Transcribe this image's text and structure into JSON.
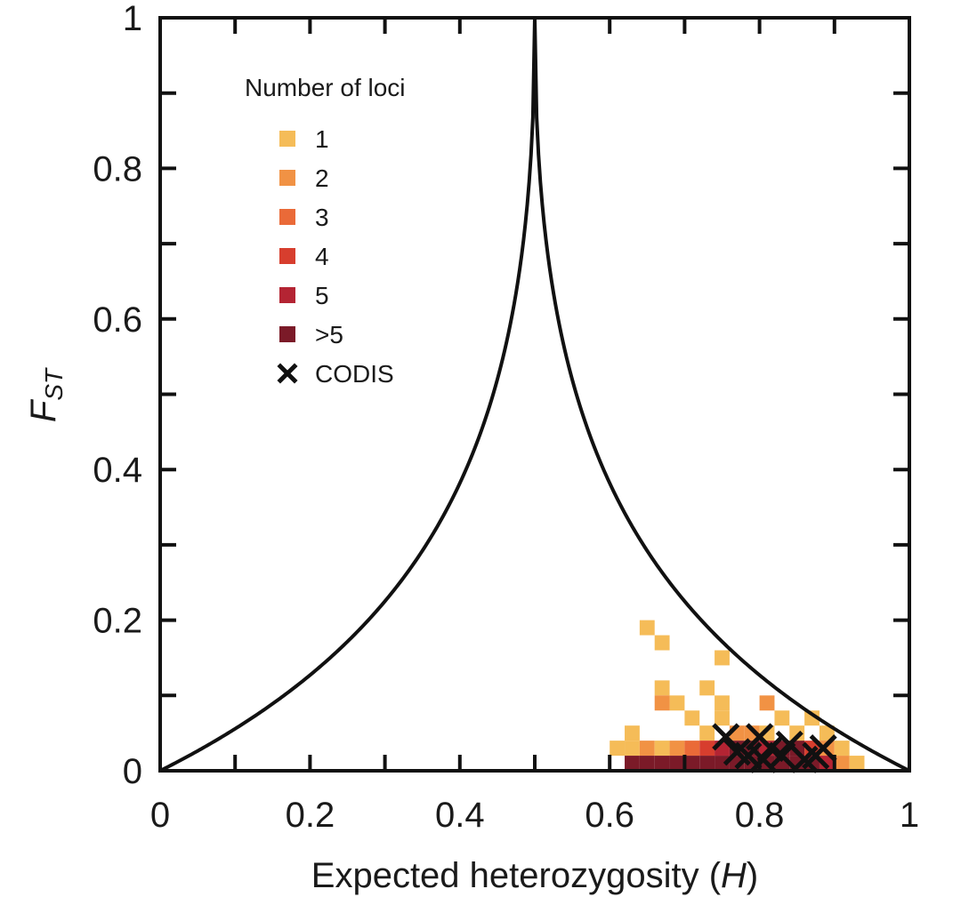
{
  "chart_data": {
    "type": "heatmap",
    "xlabel": "Expected heterozygosity",
    "xlabel_var": "H",
    "ylabel_main": "F",
    "ylabel_sub": "ST",
    "xlim": [
      0,
      1
    ],
    "ylim": [
      0,
      1
    ],
    "x_ticks": [
      "0",
      "0.2",
      "0.4",
      "0.6",
      "0.8",
      "1"
    ],
    "x_tick_values": [
      0,
      0.2,
      0.4,
      0.6,
      0.8,
      1
    ],
    "y_ticks": [
      "0",
      "0.2",
      "0.4",
      "0.6",
      "0.8",
      "1"
    ],
    "y_tick_values": [
      0,
      0.2,
      0.4,
      0.6,
      0.8,
      1
    ],
    "minor_tick_step": 0.1,
    "bin_width": 0.02,
    "bin_height": 0.02,
    "legend_title": "Number of loci",
    "legend_placement": "top-left",
    "legend_items": [
      {
        "label": "1",
        "color": "#f5bc58"
      },
      {
        "label": "2",
        "color": "#f19244"
      },
      {
        "label": "3",
        "color": "#ea6a38"
      },
      {
        "label": "4",
        "color": "#d73e2e"
      },
      {
        "label": "5",
        "color": "#b42433"
      },
      {
        "label": ">5",
        "color": "#7b1a28"
      }
    ],
    "codis_label": "CODIS",
    "colors": {
      "1": "#f5bc58",
      "2": "#f19244",
      "3": "#ea6a38",
      "4": "#d73e2e",
      "5": "#b42433",
      ">5": "#7b1a28"
    },
    "bins": [
      {
        "x": 0.65,
        "y": 0.19,
        "count": "1"
      },
      {
        "x": 0.67,
        "y": 0.17,
        "count": "1"
      },
      {
        "x": 0.75,
        "y": 0.15,
        "count": "1"
      },
      {
        "x": 0.67,
        "y": 0.11,
        "count": "1"
      },
      {
        "x": 0.73,
        "y": 0.11,
        "count": "1"
      },
      {
        "x": 0.67,
        "y": 0.09,
        "count": "2"
      },
      {
        "x": 0.69,
        "y": 0.09,
        "count": "1"
      },
      {
        "x": 0.75,
        "y": 0.09,
        "count": "1"
      },
      {
        "x": 0.81,
        "y": 0.09,
        "count": "2"
      },
      {
        "x": 0.71,
        "y": 0.07,
        "count": "1"
      },
      {
        "x": 0.75,
        "y": 0.07,
        "count": "1"
      },
      {
        "x": 0.83,
        "y": 0.07,
        "count": "1"
      },
      {
        "x": 0.87,
        "y": 0.07,
        "count": "1"
      },
      {
        "x": 0.63,
        "y": 0.05,
        "count": "1"
      },
      {
        "x": 0.73,
        "y": 0.05,
        "count": "1"
      },
      {
        "x": 0.77,
        "y": 0.05,
        "count": "2"
      },
      {
        "x": 0.79,
        "y": 0.05,
        "count": "2"
      },
      {
        "x": 0.81,
        "y": 0.05,
        "count": "1"
      },
      {
        "x": 0.85,
        "y": 0.05,
        "count": "1"
      },
      {
        "x": 0.89,
        "y": 0.05,
        "count": "1"
      },
      {
        "x": 0.61,
        "y": 0.03,
        "count": "1"
      },
      {
        "x": 0.63,
        "y": 0.03,
        "count": "1"
      },
      {
        "x": 0.65,
        "y": 0.03,
        "count": "2"
      },
      {
        "x": 0.67,
        "y": 0.03,
        "count": "1"
      },
      {
        "x": 0.69,
        "y": 0.03,
        "count": "2"
      },
      {
        "x": 0.71,
        "y": 0.03,
        "count": "3"
      },
      {
        "x": 0.73,
        "y": 0.03,
        "count": "4"
      },
      {
        "x": 0.75,
        "y": 0.03,
        "count": "5"
      },
      {
        "x": 0.77,
        "y": 0.03,
        "count": ">5"
      },
      {
        "x": 0.79,
        "y": 0.03,
        "count": ">5"
      },
      {
        "x": 0.81,
        "y": 0.03,
        "count": "5"
      },
      {
        "x": 0.83,
        "y": 0.03,
        "count": ">5"
      },
      {
        "x": 0.85,
        "y": 0.03,
        "count": ">5"
      },
      {
        "x": 0.87,
        "y": 0.03,
        "count": "4"
      },
      {
        "x": 0.89,
        "y": 0.03,
        "count": "2"
      },
      {
        "x": 0.91,
        "y": 0.03,
        "count": "1"
      },
      {
        "x": 0.63,
        "y": 0.01,
        "count": ">5"
      },
      {
        "x": 0.65,
        "y": 0.01,
        "count": ">5"
      },
      {
        "x": 0.67,
        "y": 0.01,
        "count": ">5"
      },
      {
        "x": 0.69,
        "y": 0.01,
        "count": ">5"
      },
      {
        "x": 0.71,
        "y": 0.01,
        "count": ">5"
      },
      {
        "x": 0.73,
        "y": 0.01,
        "count": ">5"
      },
      {
        "x": 0.75,
        "y": 0.01,
        "count": ">5"
      },
      {
        "x": 0.77,
        "y": 0.01,
        "count": ">5"
      },
      {
        "x": 0.79,
        "y": 0.01,
        "count": ">5"
      },
      {
        "x": 0.81,
        "y": 0.01,
        "count": ">5"
      },
      {
        "x": 0.83,
        "y": 0.01,
        "count": ">5"
      },
      {
        "x": 0.85,
        "y": 0.01,
        "count": ">5"
      },
      {
        "x": 0.87,
        "y": 0.01,
        "count": ">5"
      },
      {
        "x": 0.89,
        "y": 0.01,
        "count": "5"
      },
      {
        "x": 0.91,
        "y": 0.01,
        "count": "2"
      },
      {
        "x": 0.93,
        "y": 0.01,
        "count": "1"
      }
    ],
    "codis_points": [
      {
        "x": 0.755,
        "y": 0.045
      },
      {
        "x": 0.77,
        "y": 0.025
      },
      {
        "x": 0.785,
        "y": 0.02
      },
      {
        "x": 0.8,
        "y": 0.045
      },
      {
        "x": 0.805,
        "y": 0.015
      },
      {
        "x": 0.815,
        "y": 0.03
      },
      {
        "x": 0.83,
        "y": 0.02
      },
      {
        "x": 0.84,
        "y": 0.035
      },
      {
        "x": 0.86,
        "y": 0.015
      },
      {
        "x": 0.875,
        "y": 0.02
      },
      {
        "x": 0.885,
        "y": 0.03
      }
    ]
  }
}
